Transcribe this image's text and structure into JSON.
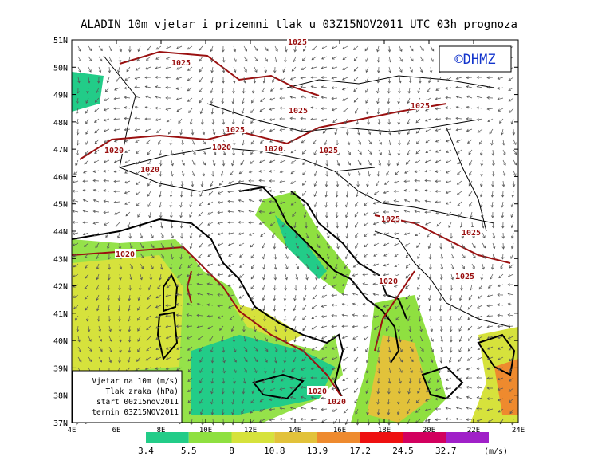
{
  "title": "ALADIN 10m vjetar i prizemni tlak u 03Z15NOV2011 UTC 03h prognoza",
  "copyright": "©DHMZ",
  "lat_labels": [
    "51N",
    "50N",
    "49N",
    "48N",
    "47N",
    "46N",
    "45N",
    "44N",
    "43N",
    "42N",
    "41N",
    "40N",
    "39N",
    "38N",
    "37N"
  ],
  "lon_labels": [
    "4E",
    "6E",
    "8E",
    "10E",
    "12E",
    "14E",
    "16E",
    "18E",
    "20E",
    "22E",
    "24E"
  ],
  "isobar_labels": [
    "1025",
    "1025",
    "1025",
    "1025",
    "1025",
    "1025",
    "1020",
    "1020",
    "1020",
    "1020",
    "1025",
    "1025",
    "1020",
    "1020",
    "1025",
    "1020",
    "1020"
  ],
  "info_box": [
    "Vjetar na 10m (m/s)",
    "Tlak zraka (hPa)",
    "start 00z15nov2011",
    "termin 03Z15NOV2011"
  ],
  "colorbar": {
    "levels": [
      3.4,
      5.5,
      8,
      10.8,
      13.9,
      17.2,
      24.5,
      32.7
    ],
    "colors": [
      "#22cc88",
      "#8fe040",
      "#d6e23c",
      "#e2c23a",
      "#ee8a2e",
      "#ee1010",
      "#d2005e",
      "#a020c8"
    ],
    "unit": "(m/s)"
  }
}
